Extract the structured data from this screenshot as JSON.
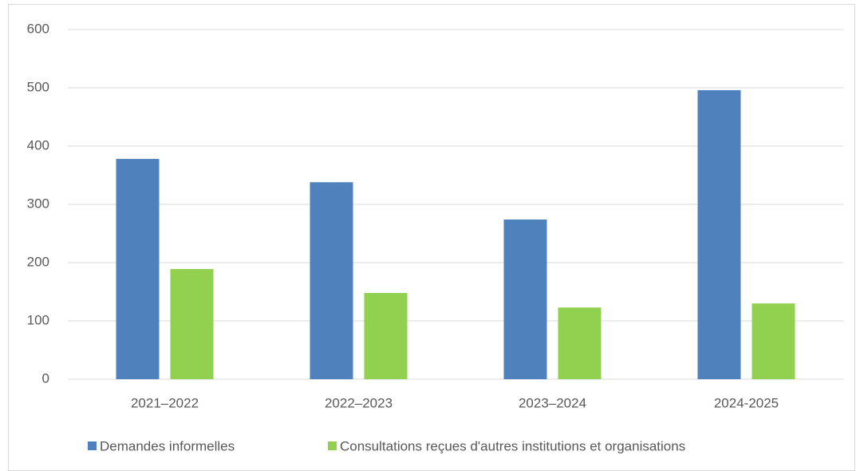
{
  "chart_data": {
    "type": "bar",
    "categories": [
      "2021–2022",
      "2022–2023",
      "2023–2024",
      "2024-2025"
    ],
    "series": [
      {
        "name": "Demandes informelles",
        "color": "#4f81bd",
        "values": [
          378,
          338,
          274,
          496
        ]
      },
      {
        "name": "Consultations reçues d'autres institutions et organisations",
        "color": "#92d050",
        "values": [
          189,
          148,
          123,
          130
        ]
      }
    ],
    "ylim": [
      0,
      600
    ],
    "yticks": [
      0,
      100,
      200,
      300,
      400,
      500,
      600
    ],
    "grid": true,
    "legend": "bottom"
  }
}
